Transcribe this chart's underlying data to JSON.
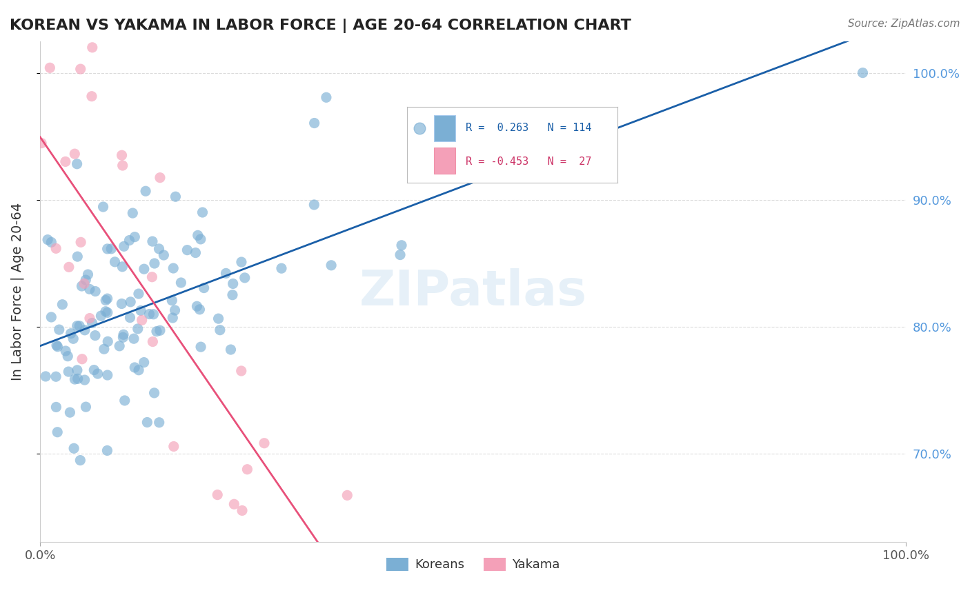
{
  "title": "KOREAN VS YAKAMA IN LABOR FORCE | AGE 20-64 CORRELATION CHART",
  "source_text": "Source: ZipAtlas.com",
  "ylabel": "In Labor Force | Age 20-64",
  "watermark": "ZIPatlas",
  "blue_color": "#7bafd4",
  "pink_color": "#f4a0b8",
  "blue_line_color": "#1a5fa8",
  "pink_line_color": "#e8507a",
  "R_blue": 0.263,
  "N_blue": 114,
  "R_pink": -0.453,
  "N_pink": 27,
  "blue_label": "Koreans",
  "pink_label": "Yakama",
  "seed_blue": 42,
  "seed_pink": 123
}
